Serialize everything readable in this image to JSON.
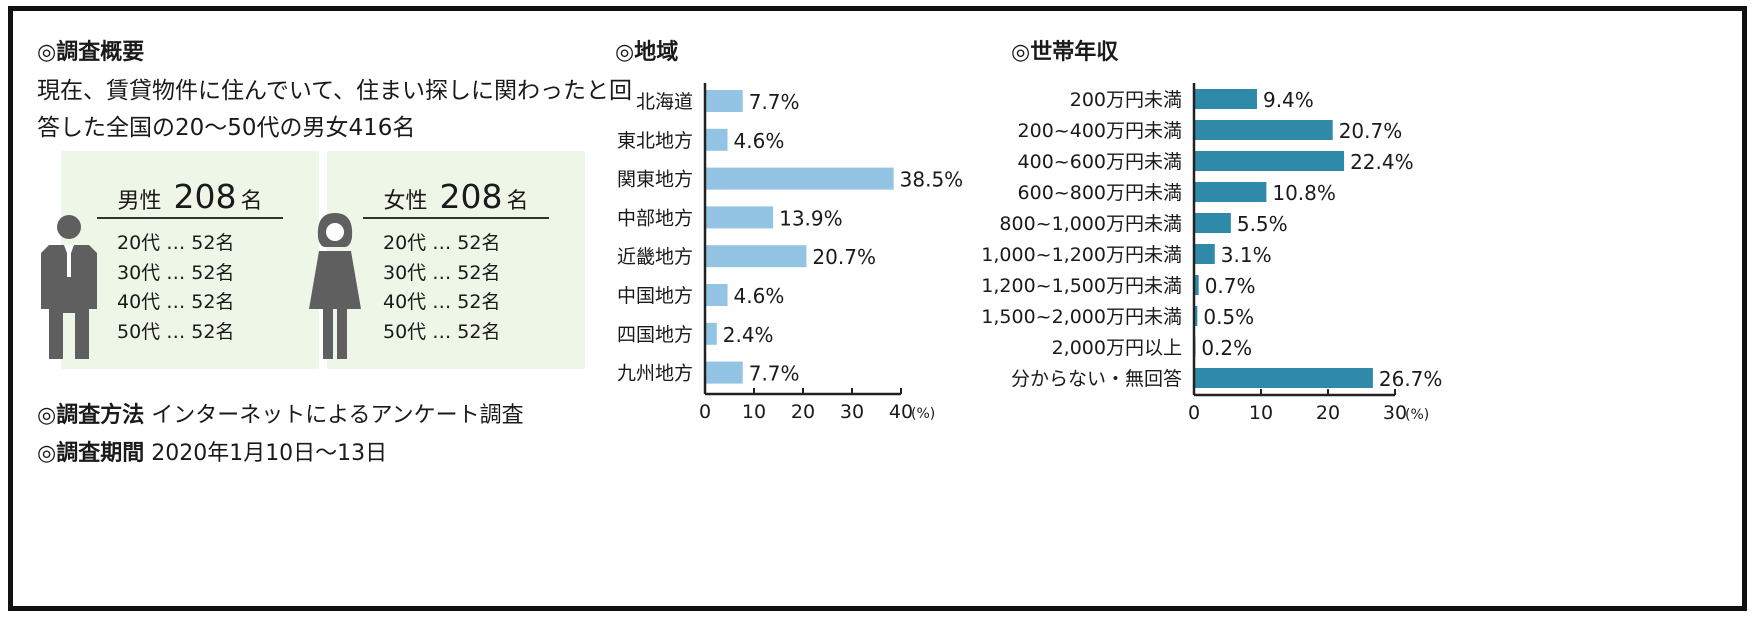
{
  "overview": {
    "heading": "◎調査概要",
    "description": "現在、賃貸物件に住んでいて、住まい探しに関わったと回答した全国の20～50代の男女416名",
    "male": {
      "label": "男性",
      "count": "208",
      "unit": "名",
      "items": [
        "20代 … 52名",
        "30代 … 52名",
        "40代 … 52名",
        "50代 … 52名"
      ]
    },
    "female": {
      "label": "女性",
      "count": "208",
      "unit": "名",
      "items": [
        "20代 … 52名",
        "30代 … 52名",
        "40代 … 52名",
        "50代 … 52名"
      ]
    },
    "method_label": "◎調査方法",
    "method_value": "インターネットによるアンケート調査",
    "period_label": "◎調査期間",
    "period_value": "2020年1月10日～13日"
  },
  "colors": {
    "region_bar": "#93c4e4",
    "income_bar": "#2f89a8",
    "panel_bg": "#eef6e7",
    "figure": "#5f5f5f"
  },
  "icons": {
    "male": "male-figure-icon",
    "female": "female-figure-icon"
  },
  "chart_data": [
    {
      "type": "bar",
      "orientation": "horizontal",
      "title": "◎地域",
      "categories": [
        "北海道",
        "東北地方",
        "関東地方",
        "中部地方",
        "近畿地方",
        "中国地方",
        "四国地方",
        "九州地方"
      ],
      "values": [
        7.7,
        4.6,
        38.5,
        13.9,
        20.7,
        4.6,
        2.4,
        7.7
      ],
      "value_labels": [
        "7.7%",
        "4.6%",
        "38.5%",
        "13.9%",
        "20.7%",
        "4.6%",
        "2.4%",
        "7.7%"
      ],
      "xlim": [
        0,
        40
      ],
      "xticks": [
        "0",
        "10",
        "20",
        "30",
        "40"
      ],
      "unit": "(%)",
      "grid": false,
      "color": "#93c4e4"
    },
    {
      "type": "bar",
      "orientation": "horizontal",
      "title": "◎世帯年収",
      "categories": [
        "200万円未満",
        "200~400万円未満",
        "400~600万円未満",
        "600~800万円未満",
        "800~1,000万円未満",
        "1,000~1,200万円未満",
        "1,200~1,500万円未満",
        "1,500~2,000万円未満",
        "2,000万円以上",
        "分からない・無回答"
      ],
      "values": [
        9.4,
        20.7,
        22.4,
        10.8,
        5.5,
        3.1,
        0.7,
        0.5,
        0.2,
        26.7
      ],
      "value_labels": [
        "9.4%",
        "20.7%",
        "22.4%",
        "10.8%",
        "5.5%",
        "3.1%",
        "0.7%",
        "0.5%",
        "0.2%",
        "26.7%"
      ],
      "xlim": [
        0,
        30
      ],
      "xticks": [
        "0",
        "10",
        "20",
        "30"
      ],
      "unit": "(%)",
      "grid": false,
      "color": "#2f89a8"
    }
  ]
}
